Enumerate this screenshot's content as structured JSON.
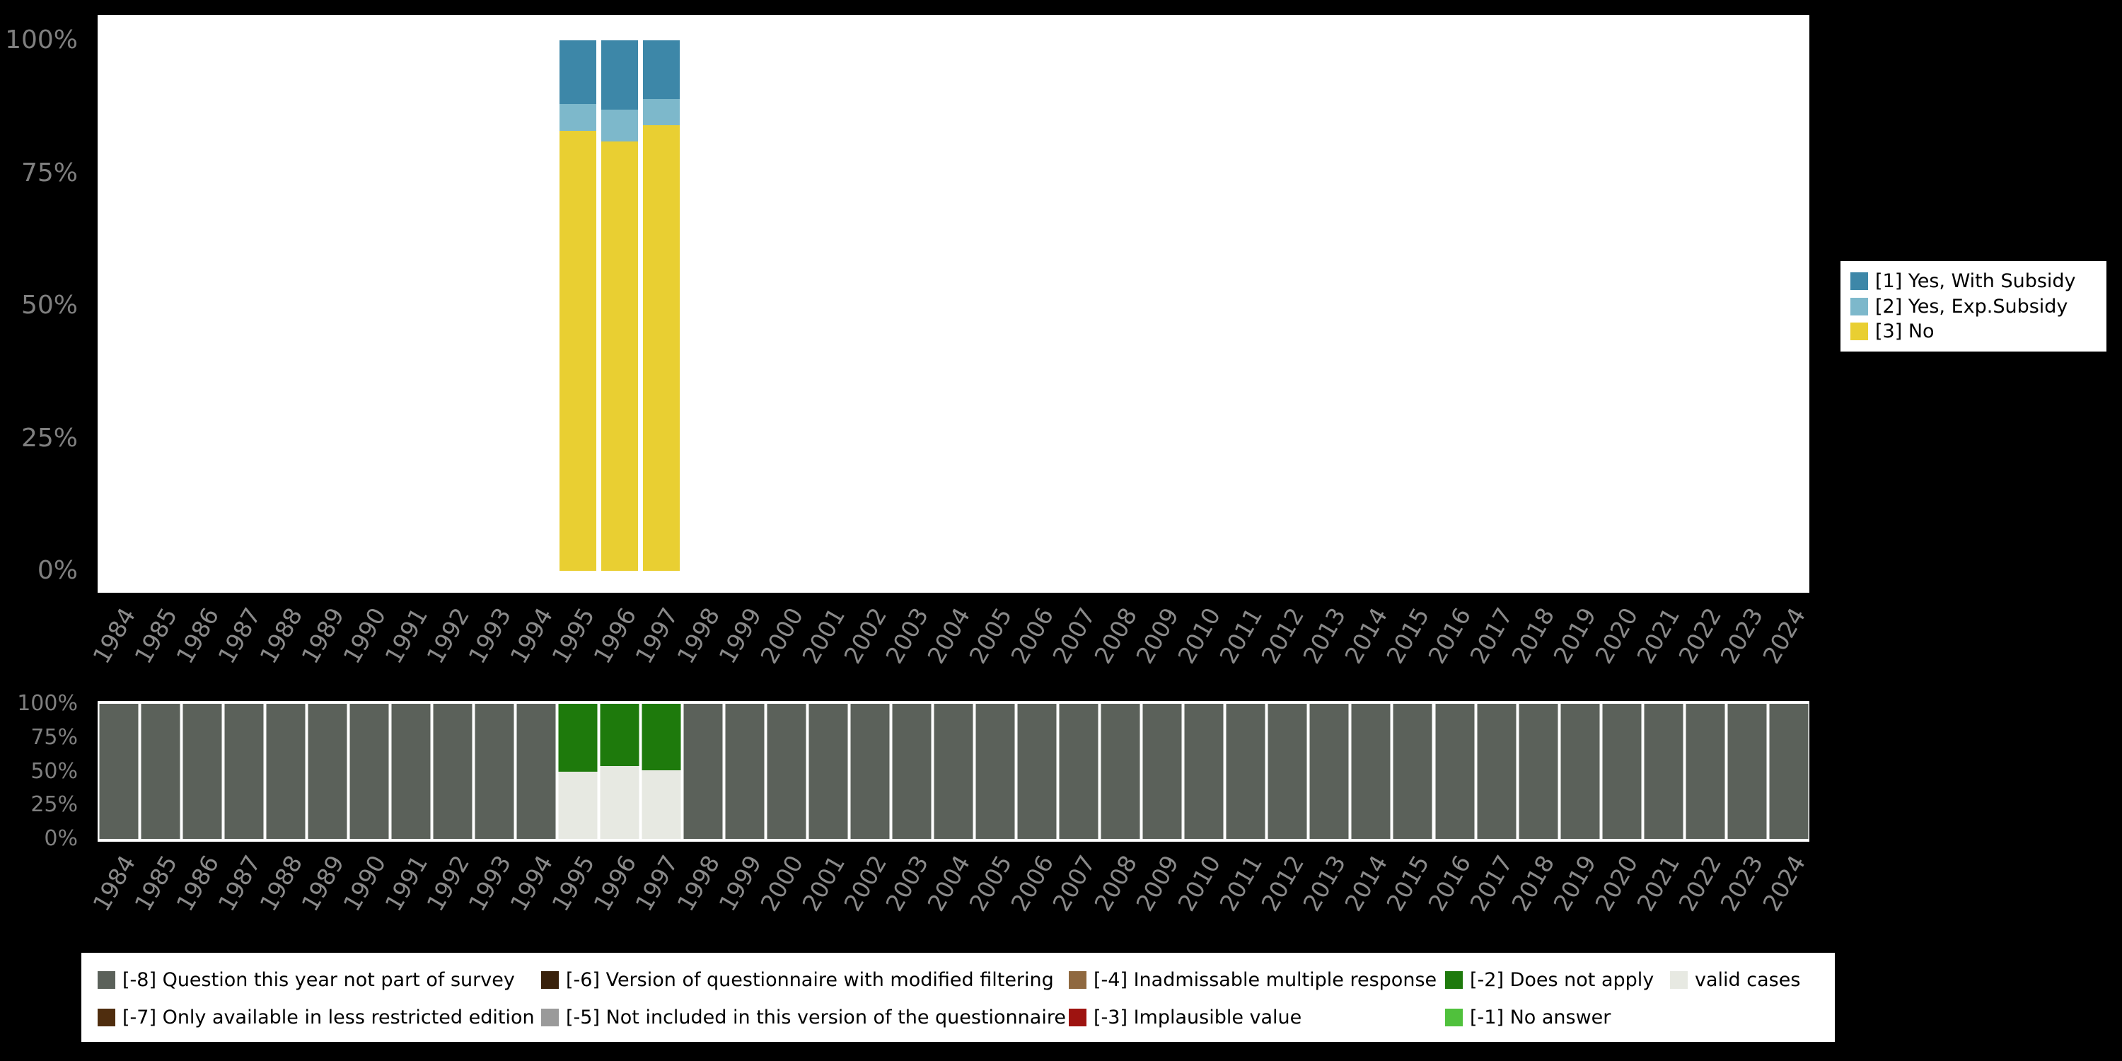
{
  "page": {
    "background": "#000000"
  },
  "top_legend": [
    {
      "label": "[1] Yes, With Subsidy",
      "color": "#3d87a8"
    },
    {
      "label": "[2] Yes, Exp.Subsidy",
      "color": "#7db8cb"
    },
    {
      "label": "[3] No",
      "color": "#e9cf32"
    }
  ],
  "bottom_legend": {
    "rows": [
      [
        {
          "label": "[-8] Question this year not part of survey",
          "color": "#5b615a"
        },
        {
          "label": "[-6] Version of questionnaire with modified filtering",
          "color": "#3a220c"
        },
        {
          "label": "[-4] Inadmissable multiple response",
          "color": "#8f683f"
        },
        {
          "label": "[-2] Does not apply",
          "color": "#1e7a0c"
        },
        {
          "label": "valid cases",
          "color": "#e7e9e2"
        }
      ],
      [
        {
          "label": "[-7] Only available in less restricted edition",
          "color": "#4f2d0e"
        },
        {
          "label": "[-5] Not included in this version of the questionnaire",
          "color": "#9a9a9a"
        },
        {
          "label": "[-3] Implausible value",
          "color": "#9e1310"
        },
        {
          "label": "[-1] No answer",
          "color": "#50c13c"
        }
      ]
    ]
  },
  "chart_data": [
    {
      "type": "bar",
      "stacked": true,
      "unit": "percent",
      "title": "",
      "xlabel": "",
      "ylabel": "",
      "ylim": [
        0,
        100
      ],
      "y_ticks": [
        "100%",
        "75%",
        "50%",
        "25%",
        "0%"
      ],
      "legend_position": "right",
      "grid": false,
      "categories": [
        "1984",
        "1985",
        "1986",
        "1987",
        "1988",
        "1989",
        "1990",
        "1991",
        "1992",
        "1993",
        "1994",
        "1995",
        "1996",
        "1997",
        "1998",
        "1999",
        "2000",
        "2001",
        "2002",
        "2003",
        "2004",
        "2005",
        "2006",
        "2007",
        "2008",
        "2009",
        "2010",
        "2011",
        "2012",
        "2013",
        "2014",
        "2015",
        "2016",
        "2017",
        "2018",
        "2019",
        "2020",
        "2021",
        "2022",
        "2023",
        "2024"
      ],
      "series": [
        {
          "name": "[3] No",
          "color": "#e9cf32",
          "values": [
            0,
            0,
            0,
            0,
            0,
            0,
            0,
            0,
            0,
            0,
            0,
            83,
            81,
            84,
            0,
            0,
            0,
            0,
            0,
            0,
            0,
            0,
            0,
            0,
            0,
            0,
            0,
            0,
            0,
            0,
            0,
            0,
            0,
            0,
            0,
            0,
            0,
            0,
            0,
            0,
            0
          ]
        },
        {
          "name": "[2] Yes, Exp.Subsidy",
          "color": "#7db8cb",
          "values": [
            0,
            0,
            0,
            0,
            0,
            0,
            0,
            0,
            0,
            0,
            0,
            5,
            6,
            5,
            0,
            0,
            0,
            0,
            0,
            0,
            0,
            0,
            0,
            0,
            0,
            0,
            0,
            0,
            0,
            0,
            0,
            0,
            0,
            0,
            0,
            0,
            0,
            0,
            0,
            0,
            0
          ]
        },
        {
          "name": "[1] Yes, With Subsidy",
          "color": "#3d87a8",
          "values": [
            0,
            0,
            0,
            0,
            0,
            0,
            0,
            0,
            0,
            0,
            0,
            12,
            13,
            11,
            0,
            0,
            0,
            0,
            0,
            0,
            0,
            0,
            0,
            0,
            0,
            0,
            0,
            0,
            0,
            0,
            0,
            0,
            0,
            0,
            0,
            0,
            0,
            0,
            0,
            0,
            0
          ]
        }
      ]
    },
    {
      "type": "bar",
      "stacked": true,
      "unit": "percent",
      "title": "",
      "xlabel": "",
      "ylabel": "",
      "ylim": [
        0,
        100
      ],
      "y_ticks": [
        "100%",
        "75%",
        "50%",
        "25%",
        "0%"
      ],
      "legend_position": "bottom",
      "grid": false,
      "categories": [
        "1984",
        "1985",
        "1986",
        "1987",
        "1988",
        "1989",
        "1990",
        "1991",
        "1992",
        "1993",
        "1994",
        "1995",
        "1996",
        "1997",
        "1998",
        "1999",
        "2000",
        "2001",
        "2002",
        "2003",
        "2004",
        "2005",
        "2006",
        "2007",
        "2008",
        "2009",
        "2010",
        "2011",
        "2012",
        "2013",
        "2014",
        "2015",
        "2016",
        "2017",
        "2018",
        "2019",
        "2020",
        "2021",
        "2022",
        "2023",
        "2024"
      ],
      "series": [
        {
          "name": "valid cases",
          "color": "#e7e9e2",
          "values": [
            0,
            0,
            0,
            0,
            0,
            0,
            0,
            0,
            0,
            0,
            0,
            50,
            54,
            51,
            0,
            0,
            0,
            0,
            0,
            0,
            0,
            0,
            0,
            0,
            0,
            0,
            0,
            0,
            0,
            0,
            0,
            0,
            0,
            0,
            0,
            0,
            0,
            0,
            0,
            0,
            0
          ]
        },
        {
          "name": "[-2] Does not apply",
          "color": "#1e7a0c",
          "values": [
            0,
            0,
            0,
            0,
            0,
            0,
            0,
            0,
            0,
            0,
            0,
            50,
            46,
            49,
            0,
            0,
            0,
            0,
            0,
            0,
            0,
            0,
            0,
            0,
            0,
            0,
            0,
            0,
            0,
            0,
            0,
            0,
            0,
            0,
            0,
            0,
            0,
            0,
            0,
            0,
            0
          ]
        },
        {
          "name": "[-8] Question this year not part of survey",
          "color": "#5b615a",
          "values": [
            100,
            100,
            100,
            100,
            100,
            100,
            100,
            100,
            100,
            100,
            100,
            0,
            0,
            0,
            100,
            100,
            100,
            100,
            100,
            100,
            100,
            100,
            100,
            100,
            100,
            100,
            100,
            100,
            100,
            100,
            100,
            100,
            100,
            100,
            100,
            100,
            100,
            100,
            100,
            100,
            100
          ]
        }
      ]
    }
  ]
}
